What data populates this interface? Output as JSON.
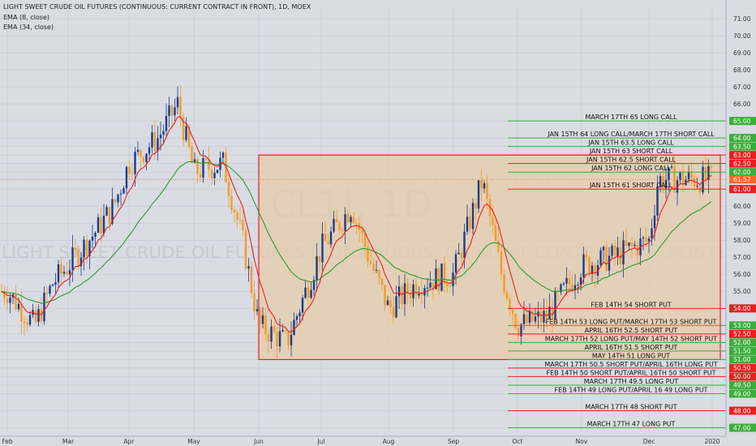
{
  "header": {
    "title": "LIGHT SWEET CRUDE OIL FUTURES (CONTINUOUS: CURRENT CONTRACT IN FRONT), 1D, MOEX",
    "ema_fast_label": "EMA (8, close)",
    "ema_slow_label": "EMA (34, close)"
  },
  "watermark": {
    "symbol": "CL1!, 1D",
    "name": "LIGHT SWEET CRUDE OIL FUTURES (CONTINUOUS: CURRENT CONTRACT IN FRONT)"
  },
  "colors": {
    "background": "#d9dce3",
    "up_candle": "#1a3c8c",
    "down_candle": "#f59a23",
    "ema_fast": "#e8201e",
    "ema_slow": "#2e9a2e",
    "long_level": "#3aae3a",
    "short_level": "#e8201e",
    "range_box_fill": "#e6ccaa",
    "range_box_border": "#e8201e",
    "last_price_badge": "#ff6a26"
  },
  "chart_data": {
    "type": "candlestick",
    "y_axis": {
      "range": [
        46.5,
        71.5
      ],
      "ticks": [
        "71.00",
        "70.00",
        "69.00",
        "68.00",
        "67.00",
        "66.00",
        "65.00",
        "64.00",
        "63.50",
        "63.00",
        "62.50",
        "62.00",
        "61.57",
        "61.00",
        "60.00",
        "59.00",
        "58.00",
        "57.00",
        "56.00",
        "55.00",
        "54.00",
        "53.00",
        "52.50",
        "52.00",
        "51.50",
        "51.00",
        "50.50",
        "50.00",
        "49.50",
        "49.00",
        "48.00",
        "47.00"
      ],
      "position": "right"
    },
    "x_axis": {
      "ticks": [
        "Feb",
        "Mar",
        "Apr",
        "May",
        "Jun",
        "Jul",
        "Aug",
        "Sep",
        "Oct",
        "Nov",
        "Dec",
        "2020"
      ]
    },
    "grid": true,
    "last_price": 61.57,
    "highlight_box": {
      "from": "Jun",
      "to": "2020",
      "low": 51.0,
      "high": 63.0
    },
    "price_path": [
      [
        "Feb",
        55.0
      ],
      [
        "Feb-mid",
        53.0
      ],
      [
        "Feb-late",
        55.5
      ],
      [
        "Mar",
        56.5
      ],
      [
        "Mar-mid",
        58.5
      ],
      [
        "Mar-late",
        60.0
      ],
      [
        "Apr",
        62.5
      ],
      [
        "Apr-mid",
        64.0
      ],
      [
        "Apr-late",
        66.0
      ],
      [
        "May",
        62.0
      ],
      [
        "May-mid",
        62.5
      ],
      [
        "May-late",
        58.0
      ],
      [
        "Jun",
        53.0
      ],
      [
        "Jun-mid",
        52.0
      ],
      [
        "Jul",
        57.5
      ],
      [
        "Jul-mid",
        60.0
      ],
      [
        "Jul-late",
        56.5
      ],
      [
        "Aug",
        54.0
      ],
      [
        "Aug-mid",
        55.5
      ],
      [
        "Sep",
        56.0
      ],
      [
        "Sep-mid",
        61.5
      ],
      [
        "Sep-late",
        56.0
      ],
      [
        "Oct",
        53.0
      ],
      [
        "Oct-mid",
        53.5
      ],
      [
        "Nov",
        56.5
      ],
      [
        "Nov-mid",
        57.0
      ],
      [
        "Dec",
        58.0
      ],
      [
        "Dec-mid",
        60.0
      ],
      [
        "Dec-late",
        61.57
      ]
    ],
    "levels": [
      {
        "price": 65.0,
        "type": "long",
        "label": "MARCH 17TH 65 LONG CALL"
      },
      {
        "price": 64.0,
        "type": "long",
        "label": "JAN 15TH 64 LONG CALL/MARCH 17TH SHORT CALL"
      },
      {
        "price": 63.5,
        "type": "long",
        "label": "JAN 15TH 63.5 LONG CALL"
      },
      {
        "price": 63.0,
        "type": "short",
        "label": "JAN 15TH 63 SHORT CALL"
      },
      {
        "price": 62.5,
        "type": "short",
        "label": "JAN 15TH 62.5 SHORT CALL"
      },
      {
        "price": 62.0,
        "type": "long",
        "label": "JAN 15TH 62 LONG CALL"
      },
      {
        "price": 61.0,
        "type": "short",
        "label": "JAN 15TH 61 SHORT CALL"
      },
      {
        "price": 54.0,
        "type": "short",
        "label": "FEB 14TH 54 SHORT PUT"
      },
      {
        "price": 53.0,
        "type": "long",
        "label": "FEB 14TH 53 LONG PUT/MARCH 17TH 53 SHORT PUT"
      },
      {
        "price": 52.5,
        "type": "short",
        "label": "APRIL 16TH 52.5 SHORT PUT"
      },
      {
        "price": 52.0,
        "type": "long",
        "label": "MARCH 17TH 52 LONG PUT/MAY 14TH 52 SHORT PUT"
      },
      {
        "price": 51.5,
        "type": "long",
        "label": "APRIL 16TH 51.5 SHORT PUT"
      },
      {
        "price": 51.0,
        "type": "long",
        "label": "MAY 14TH 51 LONG PUT"
      },
      {
        "price": 50.5,
        "type": "short",
        "label": "MARCH 17TH 50.5 SHORT PUT/APRIL 16TH LONG PUT"
      },
      {
        "price": 50.0,
        "type": "short",
        "label": "FEB 14TH 50 SHORT PUT/APRIL 16TH 50 SHORT PUT"
      },
      {
        "price": 49.5,
        "type": "long",
        "label": "MARCH 17TH 49.5 LONG PUT"
      },
      {
        "price": 49.0,
        "type": "long",
        "label": "FEB 14TH 49 LONG PUT/APRIL 16 49 LONG PUT"
      },
      {
        "price": 48.0,
        "type": "short",
        "label": "MARCH 17TH 48 SHORT PUT"
      },
      {
        "price": 47.0,
        "type": "long",
        "label": "MARCH 17TH 47 LONG PUT"
      }
    ]
  }
}
